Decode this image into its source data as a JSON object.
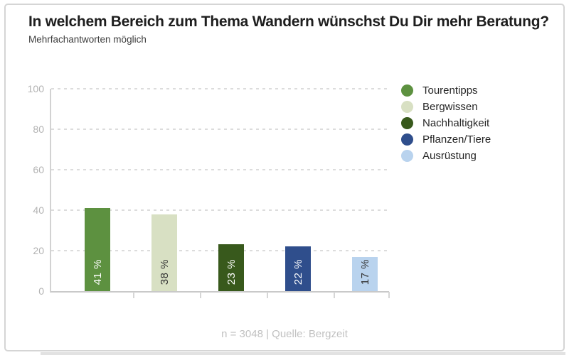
{
  "header": {
    "title": "In welchem Bereich zum Thema Wandern wünschst Du Dir mehr Beratung?",
    "subtitle": "Mehrfachantworten möglich"
  },
  "chart_data": {
    "type": "bar",
    "title": "In welchem Bereich zum Thema Wandern wünschst Du Dir mehr Beratung?",
    "subtitle": "Mehrfachantworten möglich",
    "categories": [
      "Tourentipps",
      "Bergwissen",
      "Nachhaltigkeit",
      "Pflanzen/Tiere",
      "Ausrüstung"
    ],
    "values": [
      41,
      38,
      23,
      22,
      17
    ],
    "value_labels": [
      "41 %",
      "38 %",
      "23 %",
      "22 %",
      "17 %"
    ],
    "colors": [
      "#5d9140",
      "#d8e0c3",
      "#38591c",
      "#2f4e8c",
      "#b9d3ee"
    ],
    "label_text_colors": [
      "#ffffff",
      "#333333",
      "#ffffff",
      "#ffffff",
      "#333333"
    ],
    "ylim": [
      0,
      100
    ],
    "yticks": [
      0,
      20,
      40,
      60,
      80,
      100
    ],
    "grid": "horizontal-dashed",
    "legend_position": "right",
    "xlabel": "",
    "ylabel": ""
  },
  "footer": {
    "text": "n = 3048 | Quelle: Bergzeit"
  }
}
